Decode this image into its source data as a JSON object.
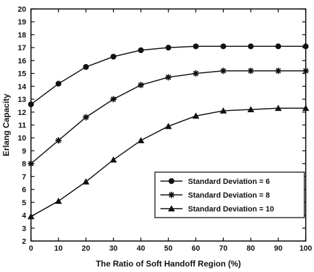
{
  "chart_data": {
    "type": "line",
    "title": "",
    "xlabel": "The Ratio of Soft Handoff Region (%)",
    "ylabel": "Erlang Capacity",
    "xlim": [
      0,
      100
    ],
    "ylim": [
      2,
      20
    ],
    "x_ticks": [
      0,
      10,
      20,
      30,
      40,
      50,
      60,
      70,
      80,
      90,
      100
    ],
    "y_ticks": [
      2,
      3,
      4,
      5,
      6,
      7,
      8,
      9,
      10,
      11,
      12,
      13,
      14,
      15,
      16,
      17,
      18,
      19,
      20
    ],
    "grid": false,
    "legend_position": "bottom-right",
    "x": [
      0,
      10,
      20,
      30,
      40,
      50,
      60,
      70,
      80,
      90,
      100
    ],
    "series": [
      {
        "name": "Standard Deviation = 6",
        "marker": "circle",
        "values": [
          12.6,
          14.2,
          15.5,
          16.3,
          16.8,
          17.0,
          17.1,
          17.1,
          17.1,
          17.1,
          17.1
        ]
      },
      {
        "name": "Standard Deviation = 8",
        "marker": "star",
        "values": [
          8.0,
          9.8,
          11.6,
          13.0,
          14.1,
          14.7,
          15.0,
          15.2,
          15.2,
          15.2,
          15.2
        ]
      },
      {
        "name": "Standard Deviation = 10",
        "marker": "triangle",
        "values": [
          3.9,
          5.1,
          6.6,
          8.3,
          9.8,
          10.9,
          11.7,
          12.1,
          12.2,
          12.3,
          12.3
        ]
      }
    ]
  }
}
